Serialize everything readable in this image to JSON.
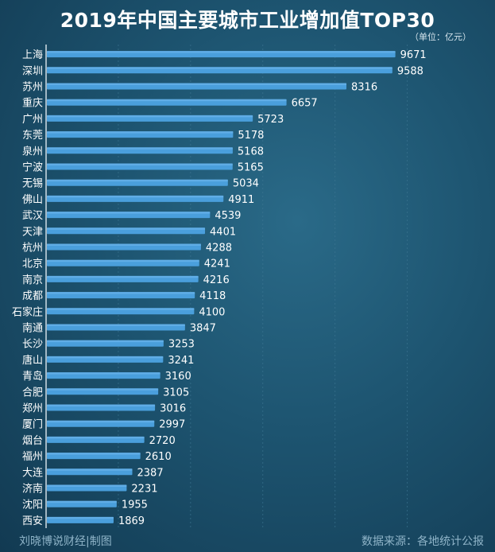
{
  "header": {
    "title": "2019年中国主要城市工业增加值TOP30",
    "unit": "（单位：亿元）"
  },
  "footer": {
    "credit": "刘晓博说财经|制图",
    "source": "数据来源：各地统计公报"
  },
  "colors": {
    "bar": "#4a9fdc",
    "bar_highlight": "#6fb8ec",
    "axis": "#d0dde5",
    "gridline": "#3f7894",
    "label": "#ffffff"
  },
  "chart_data": {
    "type": "bar",
    "orientation": "horizontal",
    "title": "2019年中国主要城市工业增加值TOP30",
    "unit": "（单位：亿元）",
    "categories": [
      "上海",
      "深圳",
      "苏州",
      "重庆",
      "广州",
      "东莞",
      "泉州",
      "宁波",
      "无锡",
      "佛山",
      "武汉",
      "天津",
      "杭州",
      "北京",
      "南京",
      "成都",
      "石家庄",
      "南通",
      "长沙",
      "唐山",
      "青岛",
      "合肥",
      "郑州",
      "厦门",
      "烟台",
      "福州",
      "大连",
      "济南",
      "沈阳",
      "西安"
    ],
    "values": [
      9671,
      9588,
      8316,
      6657,
      5723,
      5178,
      5168,
      5165,
      5034,
      4911,
      4539,
      4401,
      4288,
      4241,
      4216,
      4118,
      4100,
      3847,
      3253,
      3241,
      3160,
      3105,
      3016,
      2997,
      2720,
      2610,
      2387,
      2231,
      1955,
      1869
    ],
    "xlim": [
      0,
      11000
    ],
    "grid": true,
    "legend": "none",
    "data_labels": true
  }
}
